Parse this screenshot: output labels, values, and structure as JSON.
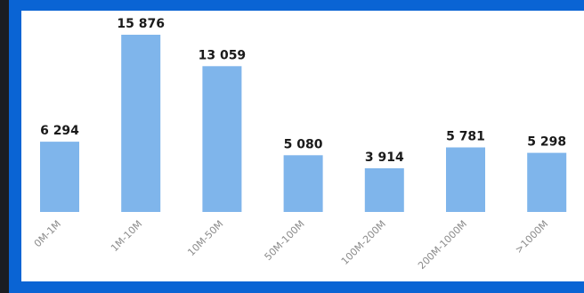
{
  "colors": {
    "bar": "#7fb5eb",
    "frame": "#0a64d4",
    "value_text": "#1a1a1a",
    "tick_text": "#8c8c8c"
  },
  "chart_data": {
    "type": "bar",
    "categories": [
      "0M-1M",
      "1M-10M",
      "10M-50M",
      "50M-100M",
      "100M-200M",
      "200M-1000M",
      ">1000M"
    ],
    "values": [
      6294,
      15876,
      13059,
      5080,
      3914,
      5781,
      5298
    ],
    "value_labels": [
      "6 294",
      "15 876",
      "13 059",
      "5 080",
      "3 914",
      "5 781",
      "5 298"
    ],
    "ylim": [
      0,
      15876
    ],
    "grid": false,
    "legend": "none"
  }
}
